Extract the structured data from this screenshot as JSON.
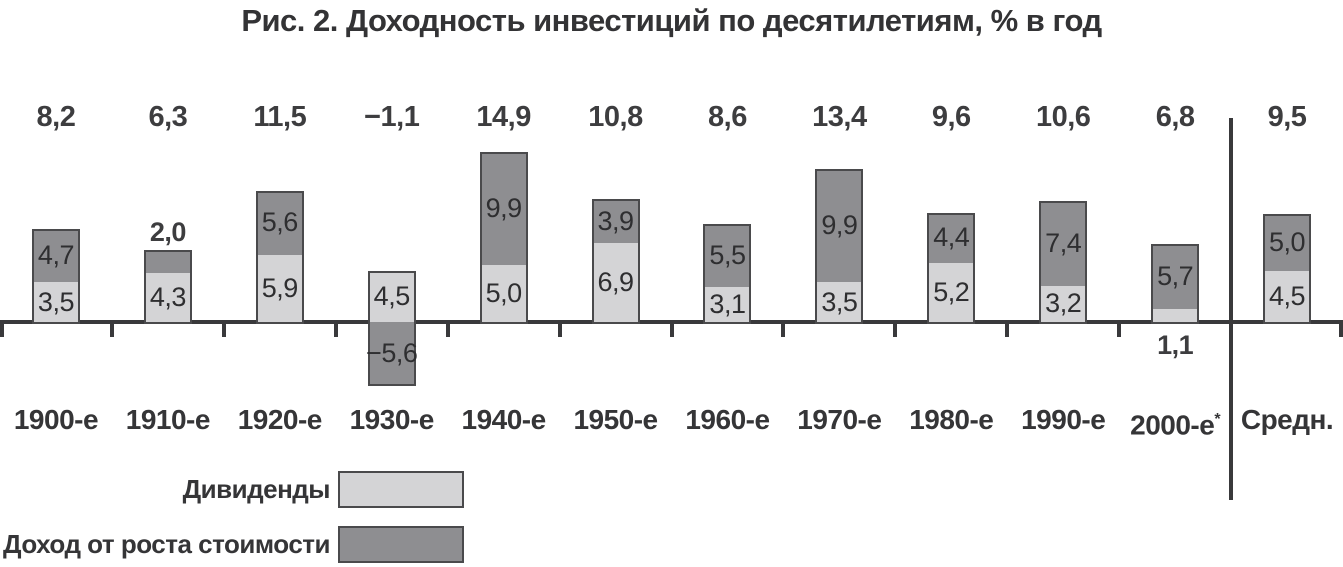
{
  "title": "Рис. 2. Доходность инвестиций по десятилетиям, % в год",
  "colors": {
    "dividends_fill": "#d4d4d6",
    "growth_fill": "#8e8e91",
    "stroke": "#4a4a4c",
    "axis": "#39393b",
    "text": "#333335"
  },
  "legend": {
    "items": [
      {
        "label": "Дивиденды",
        "key": "dividends"
      },
      {
        "label": "Доход от роста стоимости",
        "key": "growth"
      }
    ]
  },
  "chart_data": {
    "type": "bar",
    "stacked": true,
    "title": "Рис. 2. Доходность инвестиций по десятилетиям, % в год",
    "ylabel": "% в год",
    "grid": false,
    "legend_position": "bottom-left",
    "categories": [
      "1900-е",
      "1910-е",
      "1920-е",
      "1930-е",
      "1940-е",
      "1950-е",
      "1960-е",
      "1970-е",
      "1980-е",
      "1990-е",
      "2000-е*",
      "Средн."
    ],
    "series": [
      {
        "name": "Дивиденды",
        "values": [
          3.5,
          4.3,
          5.9,
          4.5,
          5.0,
          6.9,
          3.1,
          3.5,
          5.2,
          3.2,
          1.1,
          4.5
        ]
      },
      {
        "name": "Доход от роста стоимости",
        "values": [
          4.7,
          2.0,
          5.6,
          -5.6,
          9.9,
          3.9,
          5.5,
          9.9,
          4.4,
          7.4,
          5.7,
          5.0
        ]
      }
    ],
    "totals": [
      8.2,
      6.3,
      11.5,
      -1.1,
      14.9,
      10.8,
      8.6,
      13.4,
      9.6,
      10.6,
      6.8,
      9.5
    ],
    "totals_display": [
      "8,2",
      "6,3",
      "11,5",
      "−1,1",
      "14,9",
      "10,8",
      "8,6",
      "13,4",
      "9,6",
      "10,6",
      "6,8",
      "9,5"
    ],
    "dividends_display": [
      "3,5",
      "4,3",
      "5,9",
      "4,5",
      "5,0",
      "6,9",
      "3,1",
      "3,5",
      "5,2",
      "3,2",
      "1,1",
      "4,5"
    ],
    "growth_display": [
      "4,7",
      "2,0",
      "5,6",
      "−5,6",
      "9,9",
      "3,9",
      "5,5",
      "9,9",
      "4,4",
      "7,4",
      "5,7",
      "5,0"
    ],
    "separator_before_category": "Средн.",
    "ylim": [
      -7,
      16
    ]
  }
}
